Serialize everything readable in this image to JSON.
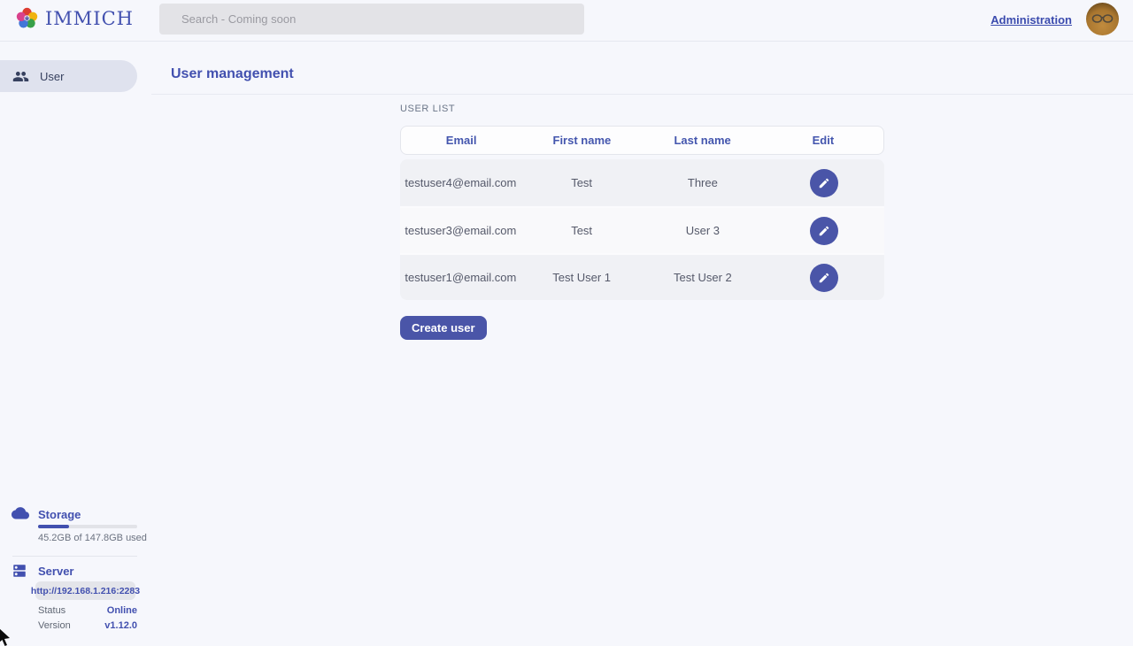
{
  "topbar": {
    "brand": "IMMICH",
    "search_placeholder": "Search - Coming soon",
    "admin_link": "Administration"
  },
  "sidebar": {
    "nav": [
      {
        "label": "User"
      }
    ],
    "storage": {
      "title": "Storage",
      "usage_text": "45.2GB of 147.8GB used",
      "used_percent": 31
    },
    "server": {
      "title": "Server",
      "url": "http://192.168.1.216:2283",
      "status_label": "Status",
      "status_value": "Online",
      "version_label": "Version",
      "version_value": "v1.12.0"
    }
  },
  "main": {
    "page_title": "User management",
    "section_title": "USER LIST",
    "table": {
      "headers": [
        "Email",
        "First name",
        "Last name",
        "Edit"
      ],
      "rows": [
        {
          "email": "testuser4@email.com",
          "first_name": "Test",
          "last_name": "Three"
        },
        {
          "email": "testuser3@email.com",
          "first_name": "Test",
          "last_name": "User 3"
        },
        {
          "email": "testuser1@email.com",
          "first_name": "Test User 1",
          "last_name": "Test User 2"
        }
      ]
    },
    "create_button_label": "Create user"
  },
  "colors": {
    "accent": "#4250af",
    "button": "#4a55a8",
    "row_stripe": "#f0f1f5",
    "background": "#f6f7fc"
  }
}
